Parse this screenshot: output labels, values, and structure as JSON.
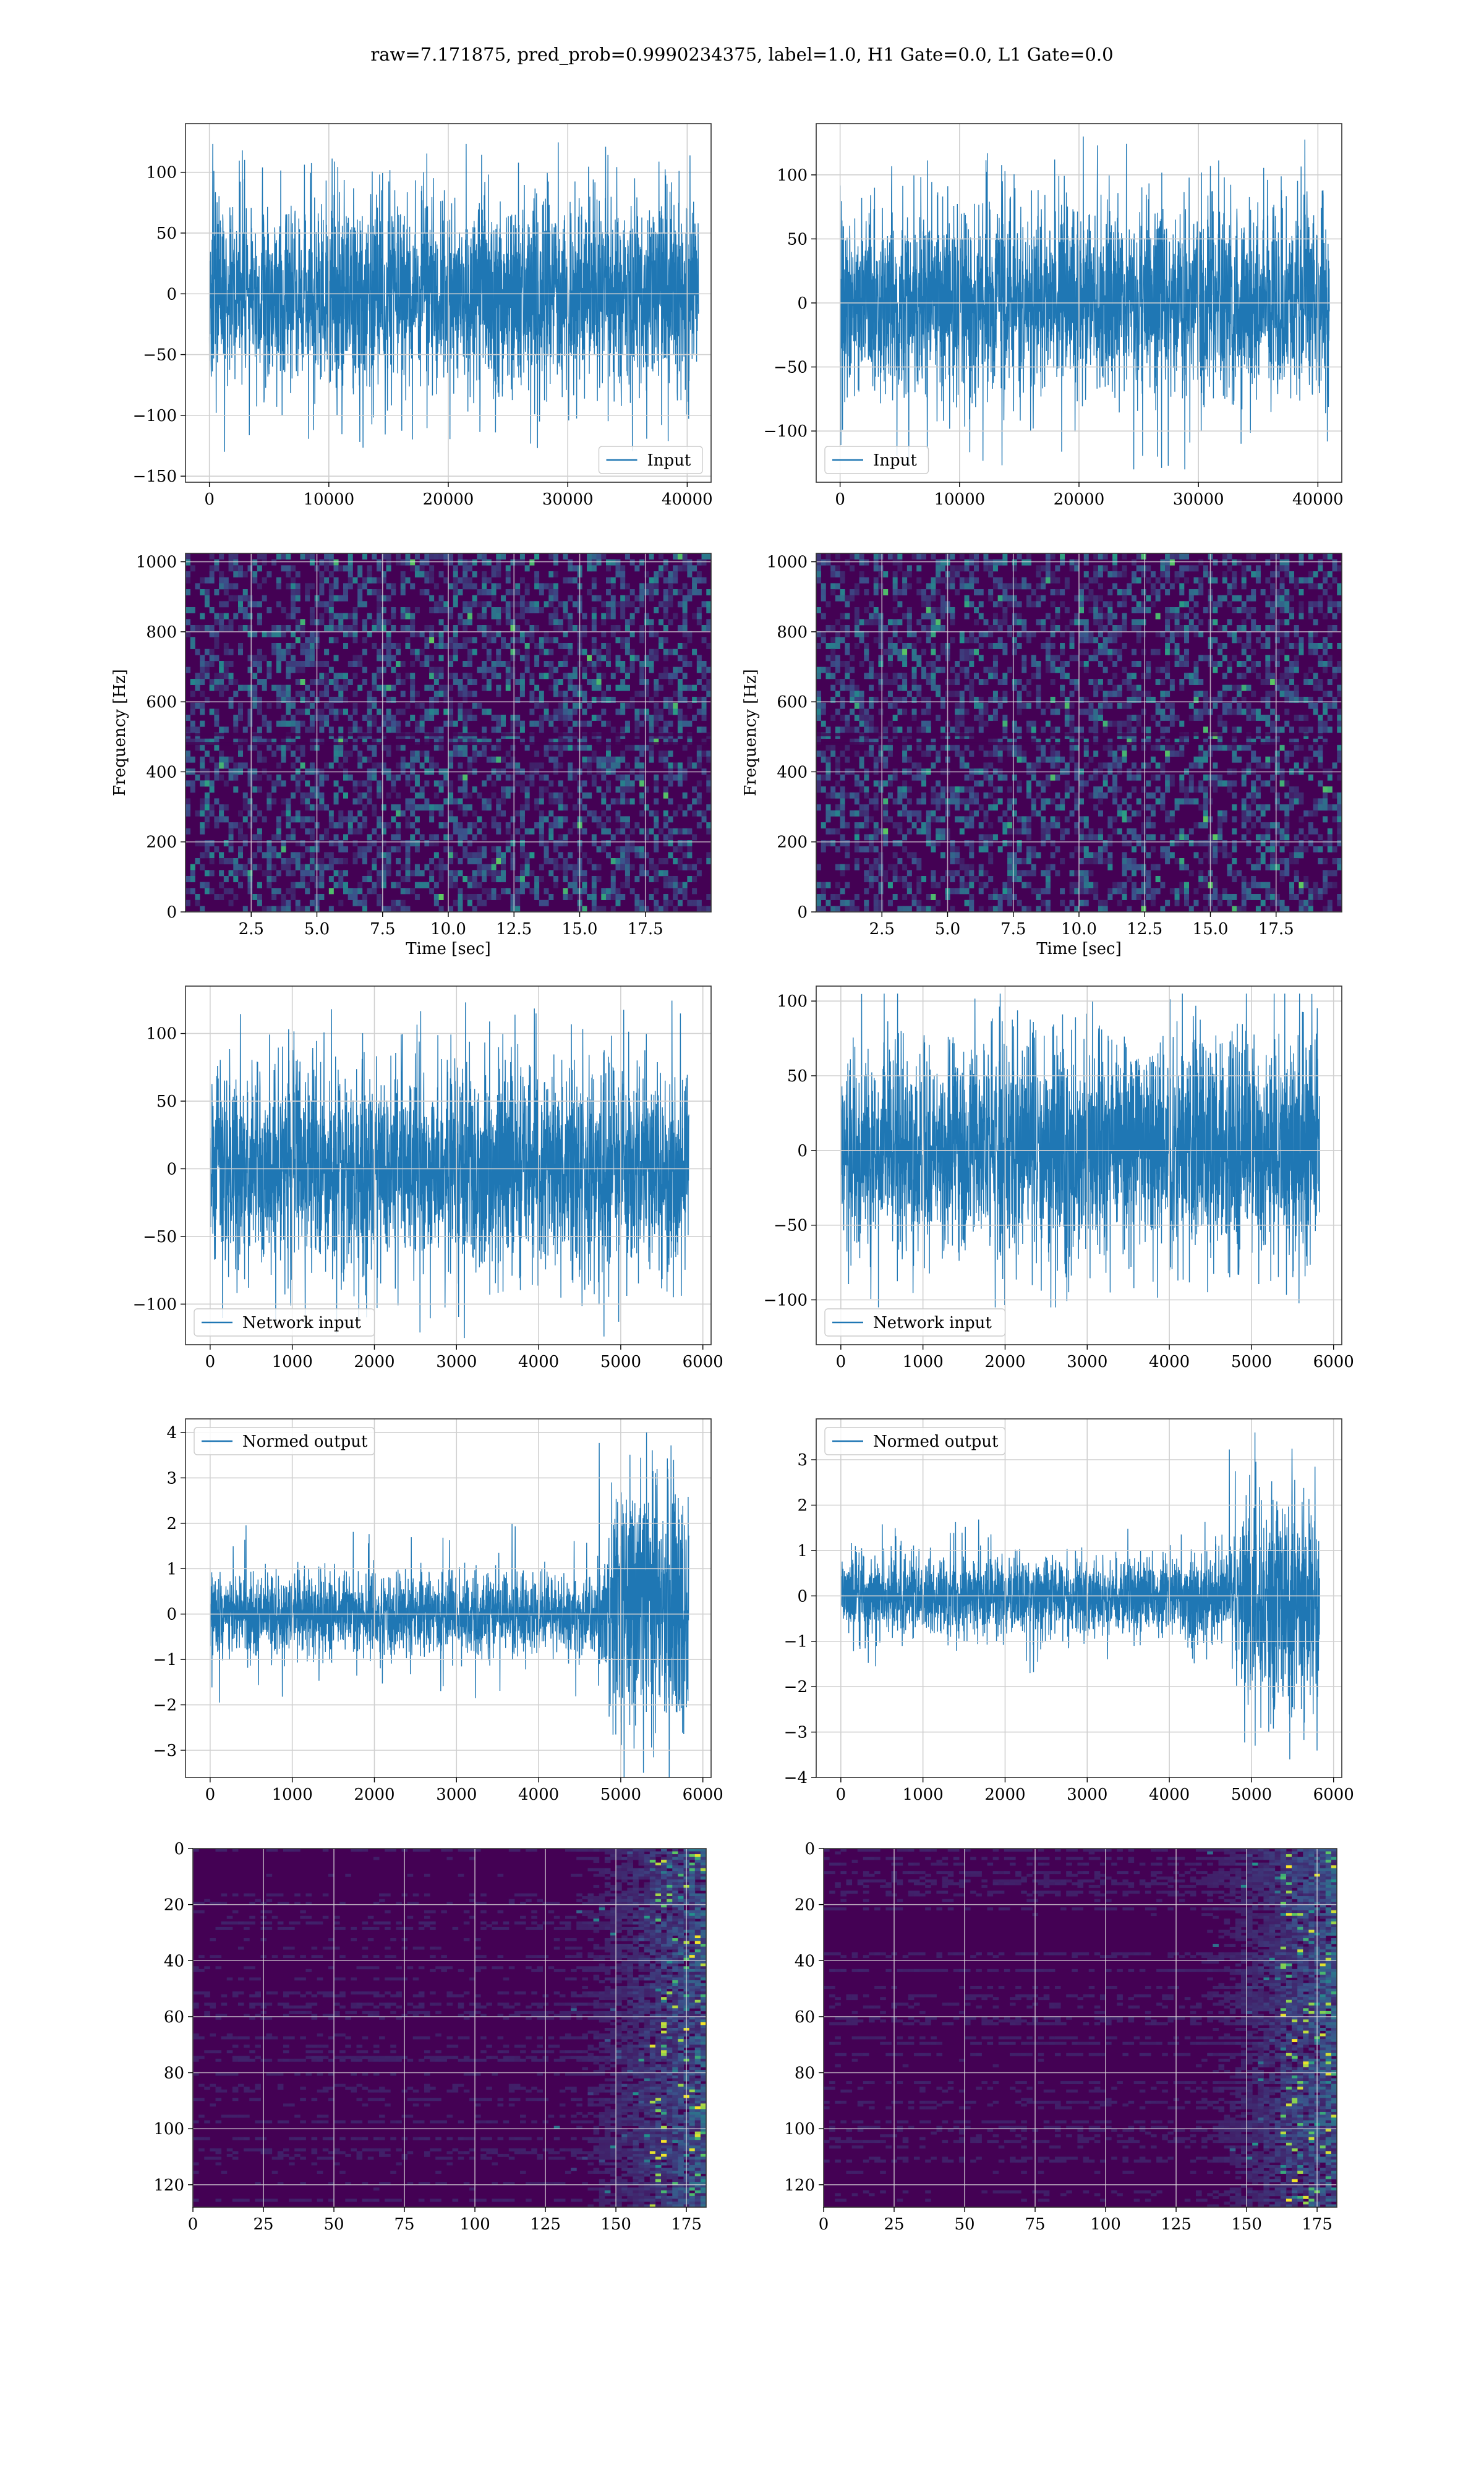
{
  "suptitle": "raw=7.171875, pred_prob=0.9990234375, label=1.0, H1 Gate=0.0, L1 Gate=0.0",
  "colors": {
    "line": "#1f77b4",
    "grid": "#d0d0d0",
    "spine": "#000000",
    "viridis_low": "#440154",
    "viridis_mid": "#21918c",
    "viridis_high": "#fde725"
  },
  "chart_data": [
    {
      "id": "input-h1",
      "type": "line",
      "row": 0,
      "col": 0,
      "legend": "Input",
      "legend_loc": "lower right",
      "xlim": [
        -2000,
        42000
      ],
      "ylim": [
        -155,
        140
      ],
      "xticks": [
        0,
        10000,
        20000,
        30000,
        40000
      ],
      "yticks": [
        -150,
        -100,
        -50,
        0,
        50,
        100
      ],
      "n_samples": 40960,
      "series": {
        "x_start": 0,
        "x_end": 40960,
        "typical_amp": 40,
        "peak_amp": 130,
        "envelope": "flat"
      },
      "grid": true
    },
    {
      "id": "input-l1",
      "type": "line",
      "row": 0,
      "col": 1,
      "legend": "Input",
      "legend_loc": "lower left",
      "xlim": [
        -2000,
        42000
      ],
      "ylim": [
        -140,
        140
      ],
      "xticks": [
        0,
        10000,
        20000,
        30000,
        40000
      ],
      "yticks": [
        -100,
        -50,
        0,
        50,
        100
      ],
      "n_samples": 40960,
      "series": {
        "x_start": 0,
        "x_end": 40960,
        "typical_amp": 38,
        "peak_amp": 130,
        "envelope": "flat"
      },
      "grid": true
    },
    {
      "id": "spectrogram-h1",
      "type": "heatmap",
      "row": 1,
      "col": 0,
      "xlabel": "Time [sec]",
      "ylabel": "Frequency [Hz]",
      "xlim": [
        0,
        20
      ],
      "ylim": [
        0,
        1024
      ],
      "xticks": [
        2.5,
        5.0,
        7.5,
        10.0,
        12.5,
        15.0,
        17.5
      ],
      "xticklabels": [
        "2.5",
        "5.0",
        "7.5",
        "10.0",
        "12.5",
        "15.0",
        "17.5"
      ],
      "yticks": [
        0,
        200,
        400,
        600,
        800,
        1000
      ],
      "colormap": "viridis",
      "grid": true
    },
    {
      "id": "spectrogram-l1",
      "type": "heatmap",
      "row": 1,
      "col": 1,
      "xlabel": "Time [sec]",
      "ylabel": "Frequency [Hz]",
      "xlim": [
        0,
        20
      ],
      "ylim": [
        0,
        1024
      ],
      "xticks": [
        2.5,
        5.0,
        7.5,
        10.0,
        12.5,
        15.0,
        17.5
      ],
      "xticklabels": [
        "2.5",
        "5.0",
        "7.5",
        "10.0",
        "12.5",
        "15.0",
        "17.5"
      ],
      "yticks": [
        0,
        200,
        400,
        600,
        800,
        1000
      ],
      "colormap": "viridis",
      "grid": true
    },
    {
      "id": "network-input-h1",
      "type": "line",
      "row": 2,
      "col": 0,
      "legend": "Network input",
      "legend_loc": "lower left",
      "xlim": [
        -300,
        6100
      ],
      "ylim": [
        -130,
        135
      ],
      "xticks": [
        0,
        1000,
        2000,
        3000,
        4000,
        5000,
        6000
      ],
      "yticks": [
        -100,
        -50,
        0,
        50,
        100
      ],
      "n_samples": 5830,
      "series": {
        "x_start": 0,
        "x_end": 5830,
        "typical_amp": 38,
        "peak_amp": 125,
        "envelope": "flat"
      },
      "grid": true
    },
    {
      "id": "network-input-l1",
      "type": "line",
      "row": 2,
      "col": 1,
      "legend": "Network input",
      "legend_loc": "lower left",
      "xlim": [
        -300,
        6100
      ],
      "ylim": [
        -130,
        110
      ],
      "xticks": [
        0,
        1000,
        2000,
        3000,
        4000,
        5000,
        6000
      ],
      "yticks": [
        -100,
        -50,
        0,
        50,
        100
      ],
      "n_samples": 5830,
      "series": {
        "x_start": 0,
        "x_end": 5830,
        "typical_amp": 36,
        "peak_amp": 105,
        "envelope": "flat"
      },
      "grid": true
    },
    {
      "id": "normed-output-h1",
      "type": "line",
      "row": 3,
      "col": 0,
      "legend": "Normed output",
      "legend_loc": "upper left",
      "xlim": [
        -300,
        6100
      ],
      "ylim": [
        -3.6,
        4.3
      ],
      "xticks": [
        0,
        1000,
        2000,
        3000,
        4000,
        5000,
        6000
      ],
      "yticks": [
        -3,
        -2,
        -1,
        0,
        1,
        2,
        3,
        4
      ],
      "n_samples": 5830,
      "series": {
        "x_start": 0,
        "x_end": 5830,
        "typical_amp": 0.45,
        "peak_amp": 2.0,
        "burst_start": 4700,
        "burst_amp": 1.4,
        "burst_peak": 4.0
      },
      "grid": true
    },
    {
      "id": "normed-output-l1",
      "type": "line",
      "row": 3,
      "col": 1,
      "legend": "Normed output",
      "legend_loc": "upper left",
      "xlim": [
        -300,
        6100
      ],
      "ylim": [
        -4.0,
        3.9
      ],
      "xticks": [
        0,
        1000,
        2000,
        3000,
        4000,
        5000,
        6000
      ],
      "yticks": [
        -4,
        -3,
        -2,
        -1,
        0,
        1,
        2,
        3
      ],
      "n_samples": 5830,
      "series": {
        "x_start": 0,
        "x_end": 5830,
        "typical_amp": 0.45,
        "peak_amp": 1.7,
        "burst_start": 4700,
        "burst_amp": 1.2,
        "burst_peak": 3.6
      },
      "grid": true
    },
    {
      "id": "feature-map-h1",
      "type": "heatmap",
      "row": 4,
      "col": 0,
      "xlim": [
        0,
        182
      ],
      "ylim": [
        128,
        0
      ],
      "xticks": [
        0,
        25,
        50,
        75,
        100,
        125,
        150,
        175
      ],
      "yticks": [
        0,
        20,
        40,
        60,
        80,
        100,
        120
      ],
      "n_rows": 128,
      "n_cols": 182,
      "active_from_col": 125,
      "colormap": "viridis",
      "grid": true
    },
    {
      "id": "feature-map-l1",
      "type": "heatmap",
      "row": 4,
      "col": 1,
      "xlim": [
        0,
        182
      ],
      "ylim": [
        128,
        0
      ],
      "xticks": [
        0,
        25,
        50,
        75,
        100,
        125,
        150,
        175
      ],
      "yticks": [
        0,
        20,
        40,
        60,
        80,
        100,
        120
      ],
      "n_rows": 128,
      "n_cols": 182,
      "active_from_col": 125,
      "colormap": "viridis",
      "grid": true
    }
  ]
}
